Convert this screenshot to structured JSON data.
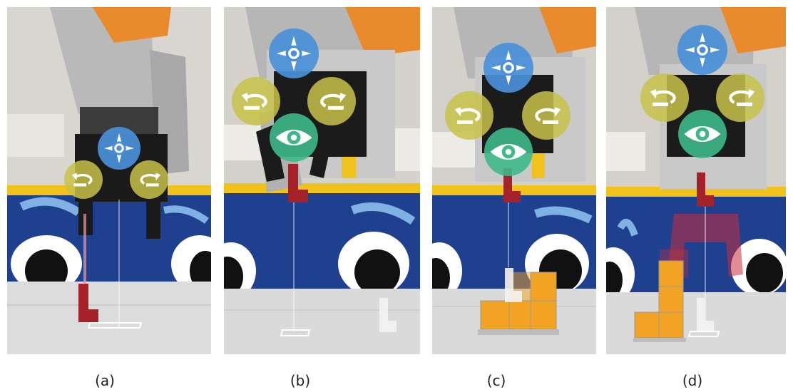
{
  "figure": {
    "panels": [
      {
        "id": "a",
        "caption": "(a)"
      },
      {
        "id": "b",
        "caption": "(b)"
      },
      {
        "id": "c",
        "caption": "(c)"
      },
      {
        "id": "d",
        "caption": "(d)"
      }
    ]
  },
  "colors": {
    "robot_arm_gray": "#b9b9b9",
    "robot_orange": "#e98a2c",
    "wall_blue": "#1f3f8f",
    "wall_yellow": "#f1c21b",
    "table_gray": "#dcdcdc",
    "block_red": "#a4232b",
    "block_orange": "#f2a323",
    "ui_blue": "#4a90d9",
    "ui_yellow": "#c8c24a",
    "ui_green": "#3fb98a"
  },
  "icons": {
    "move": "move-crosshair-icon",
    "rotate_left": "rotate-left-icon",
    "rotate_right": "rotate-right-icon",
    "view": "eye-icon"
  }
}
